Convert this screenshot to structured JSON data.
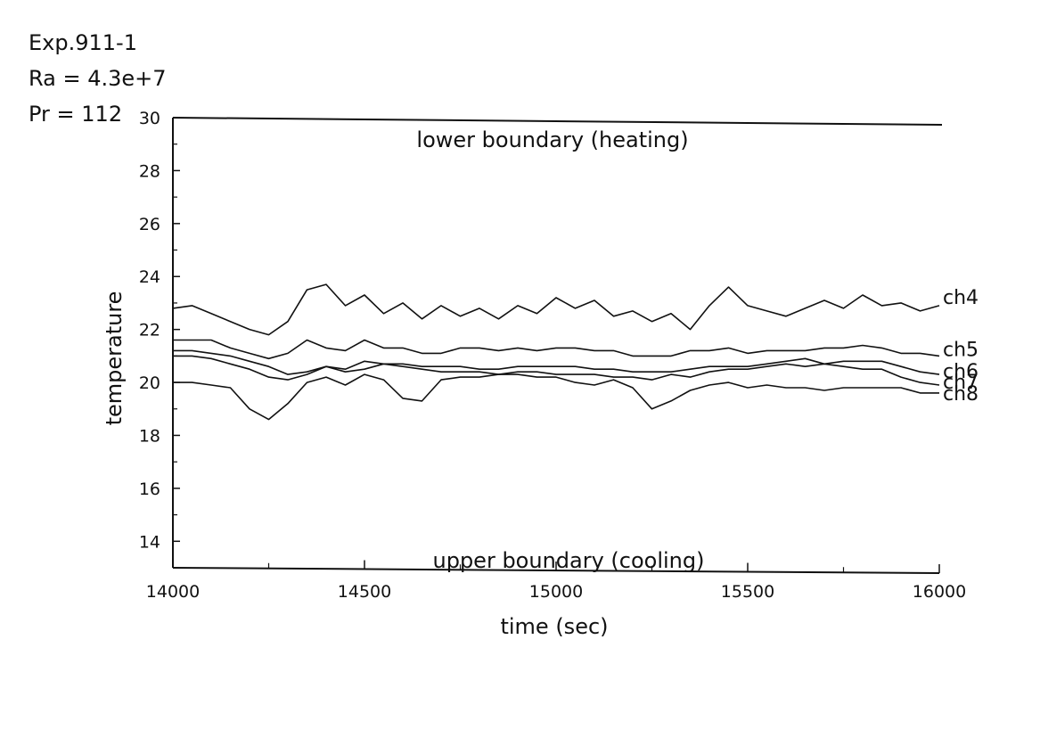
{
  "header": {
    "experiment": "Exp.911-1",
    "rayleigh": "Ra  =  4.3e+7",
    "prandtl": "Pr  =  112"
  },
  "chart_data": {
    "type": "line",
    "xlabel": "time (sec)",
    "ylabel": "temperature",
    "xlim": [
      14000,
      16000
    ],
    "ylim": [
      13,
      30
    ],
    "x_ticks": [
      14000,
      14500,
      15000,
      15500,
      16000
    ],
    "y_ticks": [
      14,
      16,
      18,
      20,
      22,
      24,
      26,
      28,
      30
    ],
    "grid": false,
    "legend": "series labels at right end of each line",
    "annotations": [
      {
        "text": "lower boundary (heating)",
        "position": "top"
      },
      {
        "text": "upper boundary (cooling)",
        "position": "bottom"
      }
    ],
    "x": [
      14000,
      14050,
      14100,
      14150,
      14200,
      14250,
      14300,
      14350,
      14400,
      14450,
      14500,
      14550,
      14600,
      14650,
      14700,
      14750,
      14800,
      14850,
      14900,
      14950,
      15000,
      15050,
      15100,
      15150,
      15200,
      15250,
      15300,
      15350,
      15400,
      15450,
      15500,
      15550,
      15600,
      15650,
      15700,
      15750,
      15800,
      15850,
      15900,
      15950,
      16000
    ],
    "series": [
      {
        "name": "ch4",
        "values": [
          22.8,
          22.9,
          22.6,
          22.3,
          22.0,
          21.8,
          22.3,
          23.5,
          23.7,
          22.9,
          23.3,
          22.6,
          23.0,
          22.4,
          22.9,
          22.5,
          22.8,
          22.4,
          22.9,
          22.6,
          23.2,
          22.8,
          23.1,
          22.5,
          22.7,
          22.3,
          22.6,
          22.0,
          22.9,
          23.6,
          22.9,
          22.7,
          22.5,
          22.8,
          23.1,
          22.8,
          23.3,
          22.9,
          23.0,
          22.7,
          22.9
        ]
      },
      {
        "name": "ch5",
        "values": [
          21.6,
          21.6,
          21.6,
          21.3,
          21.1,
          20.9,
          21.1,
          21.6,
          21.3,
          21.2,
          21.6,
          21.3,
          21.3,
          21.1,
          21.1,
          21.3,
          21.3,
          21.2,
          21.3,
          21.2,
          21.3,
          21.3,
          21.2,
          21.2,
          21.0,
          21.0,
          21.0,
          21.2,
          21.2,
          21.3,
          21.1,
          21.2,
          21.2,
          21.2,
          21.3,
          21.3,
          21.4,
          21.3,
          21.1,
          21.1,
          21.0
        ]
      },
      {
        "name": "ch6",
        "values": [
          21.2,
          21.2,
          21.1,
          21.0,
          20.8,
          20.6,
          20.3,
          20.4,
          20.6,
          20.5,
          20.8,
          20.7,
          20.7,
          20.6,
          20.6,
          20.6,
          20.5,
          20.5,
          20.6,
          20.6,
          20.6,
          20.6,
          20.5,
          20.5,
          20.4,
          20.4,
          20.4,
          20.5,
          20.6,
          20.6,
          20.6,
          20.7,
          20.8,
          20.9,
          20.7,
          20.8,
          20.8,
          20.8,
          20.6,
          20.4,
          20.3
        ]
      },
      {
        "name": "ch7",
        "values": [
          21.0,
          21.0,
          20.9,
          20.7,
          20.5,
          20.2,
          20.1,
          20.3,
          20.6,
          20.4,
          20.5,
          20.7,
          20.6,
          20.5,
          20.4,
          20.4,
          20.4,
          20.3,
          20.4,
          20.4,
          20.3,
          20.3,
          20.3,
          20.2,
          20.2,
          20.1,
          20.3,
          20.2,
          20.4,
          20.5,
          20.5,
          20.6,
          20.7,
          20.6,
          20.7,
          20.6,
          20.5,
          20.5,
          20.2,
          20.0,
          19.9
        ]
      },
      {
        "name": "ch8",
        "values": [
          20.0,
          20.0,
          19.9,
          19.8,
          19.0,
          18.6,
          19.2,
          20.0,
          20.2,
          19.9,
          20.3,
          20.1,
          19.4,
          19.3,
          20.1,
          20.2,
          20.2,
          20.3,
          20.3,
          20.2,
          20.2,
          20.0,
          19.9,
          20.1,
          19.8,
          19.0,
          19.3,
          19.7,
          19.9,
          20.0,
          19.8,
          19.9,
          19.8,
          19.8,
          19.7,
          19.8,
          19.8,
          19.8,
          19.8,
          19.6,
          19.6
        ]
      }
    ]
  }
}
